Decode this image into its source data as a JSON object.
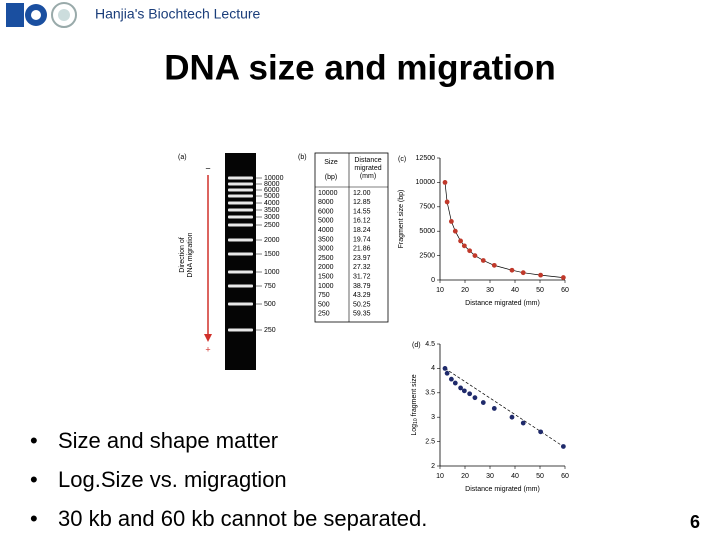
{
  "header": {
    "title": "Hanjia's Biochtech Lecture"
  },
  "title": "DNA size and migration",
  "bullets": [
    "Size and shape matter",
    "Log.Size vs. migragtion",
    "30 kb and 60 kb cannot be separated."
  ],
  "page_number": 6,
  "figure": {
    "gel": {
      "label": "(a)",
      "axis_label": [
        "Direction of",
        "DNA migration"
      ],
      "start": "−",
      "end": "+",
      "bands": [
        10000,
        8000,
        6000,
        5000,
        4000,
        3500,
        3000,
        2500,
        2000,
        1500,
        1000,
        750,
        500,
        250
      ]
    },
    "table": {
      "label": "(b)",
      "headers": [
        [
          "Size",
          "(bp)"
        ],
        [
          "Distance",
          "migrated",
          "(mm)"
        ]
      ],
      "rows": [
        [
          "10000",
          "12.00"
        ],
        [
          "8000",
          "12.85"
        ],
        [
          "6000",
          "14.55"
        ],
        [
          "5000",
          "16.12"
        ],
        [
          "4000",
          "18.24"
        ],
        [
          "3500",
          "19.74"
        ],
        [
          "3000",
          "21.86"
        ],
        [
          "2500",
          "23.97"
        ],
        [
          "2000",
          "27.32"
        ],
        [
          "1500",
          "31.72"
        ],
        [
          "1000",
          "38.79"
        ],
        [
          "750",
          "43.29"
        ],
        [
          "500",
          "50.25"
        ],
        [
          "250",
          "59.35"
        ]
      ]
    },
    "plot_c": {
      "type": "scatter",
      "label": "(c)",
      "x_label": "Distance migrated (mm)",
      "y_label": "Fragment size (bp)",
      "x": [
        12,
        12.85,
        14.55,
        16.12,
        18.24,
        19.74,
        21.86,
        23.97,
        27.32,
        31.72,
        38.79,
        43.29,
        50.25,
        59.35
      ],
      "values": [
        10000,
        8000,
        6000,
        5000,
        4000,
        3500,
        3000,
        2500,
        2000,
        1500,
        1000,
        750,
        500,
        250
      ],
      "xlim": [
        10,
        60
      ],
      "xticks": [
        10,
        20,
        30,
        40,
        50,
        60
      ],
      "ylim": [
        0,
        12500
      ],
      "yticks": [
        0,
        2500,
        5000,
        7500,
        10000,
        12500
      ],
      "color": "#c0392b"
    },
    "plot_d": {
      "type": "scatter",
      "label": "(d)",
      "x_label": "Distance migrated (mm)",
      "y_label": {
        "text": "Log",
        "subscript": "10",
        "rest": "fragment size"
      },
      "x": [
        12,
        12.85,
        14.55,
        16.12,
        18.24,
        19.74,
        21.86,
        23.97,
        27.32,
        31.72,
        38.79,
        43.29,
        50.25,
        59.35
      ],
      "values": [
        4,
        3.9,
        3.78,
        3.7,
        3.6,
        3.54,
        3.48,
        3.4,
        3.3,
        3.18,
        3,
        2.88,
        2.7,
        2.4
      ],
      "xlim": [
        10,
        60
      ],
      "xticks": [
        10,
        20,
        30,
        40,
        50,
        60
      ],
      "ylim": [
        2,
        4.5
      ],
      "yticks": [
        2,
        2.5,
        3,
        3.5,
        4,
        4.5
      ],
      "color": "#1f2a6b"
    }
  }
}
